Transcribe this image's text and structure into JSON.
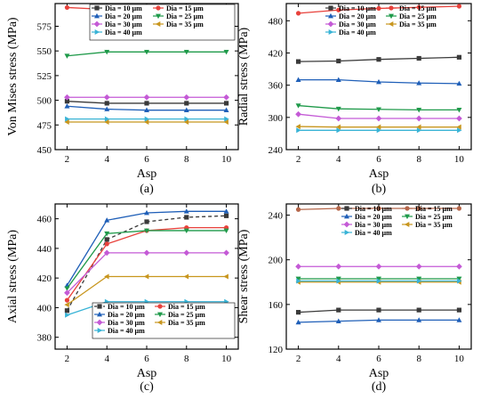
{
  "colors": {
    "Dia = 10 µm": "#3a3a3a",
    "Dia = 15 µm": "#e8413b",
    "Dia = 20 µm": "#1f5fb8",
    "Dia = 25 µm": "#1f9a4a",
    "Dia = 30 µm": "#c45ad6",
    "Dia = 35 µm": "#c8961e",
    "Dia = 40 µm": "#38b3d6",
    "Dia = 15 µm (d)": "#b5664a"
  },
  "chart_data": [
    {
      "type": "line",
      "panel_label": "(a)",
      "xlabel": "Asp",
      "ylabel": "Von Mises stress (MPa)",
      "x": [
        2,
        4,
        6,
        8,
        10
      ],
      "xlim": [
        1.4,
        10.6
      ],
      "ylim": [
        450,
        598
      ],
      "yticks": [
        450,
        475,
        500,
        525,
        550,
        575
      ],
      "xticks": [
        2,
        4,
        6,
        8,
        10
      ],
      "legend_placement": "top-right",
      "series": [
        {
          "name": "Dia = 10 µm",
          "marker": "square",
          "values": [
            499,
            497,
            497,
            497,
            497
          ]
        },
        {
          "name": "Dia = 15 µm",
          "marker": "circle",
          "values": [
            594,
            592,
            592,
            592,
            592
          ]
        },
        {
          "name": "Dia = 20 µm",
          "marker": "triangle-up",
          "values": [
            494,
            491,
            490,
            490,
            490
          ]
        },
        {
          "name": "Dia = 25 µm",
          "marker": "triangle-down",
          "values": [
            545,
            549,
            549,
            549,
            549
          ]
        },
        {
          "name": "Dia = 30 µm",
          "marker": "diamond",
          "values": [
            503,
            503,
            503,
            503,
            503
          ]
        },
        {
          "name": "Dia = 35 µm",
          "marker": "triangle-left",
          "values": [
            478,
            478,
            478,
            478,
            478
          ]
        },
        {
          "name": "Dia = 40 µm",
          "marker": "triangle-right",
          "values": [
            481,
            481,
            481,
            481,
            481
          ]
        }
      ]
    },
    {
      "type": "line",
      "panel_label": "(b)",
      "xlabel": "Asp",
      "ylabel": "Radial stress (MPa)",
      "x": [
        2,
        4,
        6,
        8,
        10
      ],
      "xlim": [
        1.4,
        10.6
      ],
      "ylim": [
        240,
        512
      ],
      "yticks": [
        240,
        300,
        360,
        420,
        480
      ],
      "xticks": [
        2,
        4,
        6,
        8,
        10
      ],
      "legend_placement": "top-right",
      "series": [
        {
          "name": "Dia = 10 µm",
          "marker": "square",
          "values": [
            404,
            405,
            408,
            410,
            412
          ]
        },
        {
          "name": "Dia = 15 µm",
          "marker": "circle",
          "values": [
            494,
            500,
            503,
            505,
            507
          ]
        },
        {
          "name": "Dia = 20 µm",
          "marker": "triangle-up",
          "values": [
            370,
            370,
            366,
            364,
            363
          ]
        },
        {
          "name": "Dia = 25 µm",
          "marker": "triangle-down",
          "values": [
            322,
            316,
            315,
            314,
            314
          ]
        },
        {
          "name": "Dia = 30 µm",
          "marker": "diamond",
          "values": [
            306,
            298,
            298,
            298,
            298
          ]
        },
        {
          "name": "Dia = 35 µm",
          "marker": "triangle-left",
          "values": [
            283,
            282,
            282,
            282,
            282
          ]
        },
        {
          "name": "Dia = 40 µm",
          "marker": "triangle-right",
          "values": [
            276,
            276,
            276,
            276,
            276
          ]
        }
      ]
    },
    {
      "type": "line",
      "panel_label": "(c)",
      "xlabel": "Asp",
      "ylabel": "Axial stress (MPa)",
      "x": [
        2,
        4,
        6,
        8,
        10
      ],
      "xlim": [
        1.4,
        10.6
      ],
      "ylim": [
        372,
        470
      ],
      "yticks": [
        380,
        400,
        420,
        440,
        460
      ],
      "xticks": [
        2,
        4,
        6,
        8,
        10
      ],
      "legend_placement": "bottom-right",
      "series": [
        {
          "name": "Dia = 10 µm",
          "marker": "square",
          "dashed": true,
          "values": [
            398,
            446,
            458,
            461,
            462
          ]
        },
        {
          "name": "Dia = 15 µm",
          "marker": "circle",
          "values": [
            405,
            443,
            452,
            454,
            454
          ]
        },
        {
          "name": "Dia = 20 µm",
          "marker": "triangle-up",
          "values": [
            415,
            459,
            464,
            465,
            465
          ]
        },
        {
          "name": "Dia = 25 µm",
          "marker": "triangle-down",
          "values": [
            413,
            450,
            452,
            452,
            452
          ]
        },
        {
          "name": "Dia = 30 µm",
          "marker": "diamond",
          "values": [
            410,
            437,
            437,
            437,
            437
          ]
        },
        {
          "name": "Dia = 35 µm",
          "marker": "triangle-left",
          "values": [
            402,
            421,
            421,
            421,
            421
          ]
        },
        {
          "name": "Dia = 40 µm",
          "marker": "triangle-right",
          "values": [
            395,
            404,
            404,
            404,
            404
          ]
        }
      ]
    },
    {
      "type": "line",
      "panel_label": "(d)",
      "xlabel": "Asp",
      "ylabel": "Shear stress (MPa)",
      "x": [
        2,
        4,
        6,
        8,
        10
      ],
      "xlim": [
        1.4,
        10.6
      ],
      "ylim": [
        120,
        250
      ],
      "yticks": [
        120,
        160,
        200,
        240
      ],
      "xticks": [
        2,
        4,
        6,
        8,
        10
      ],
      "legend_placement": "top-right",
      "series": [
        {
          "name": "Dia = 10 µm",
          "marker": "square",
          "values": [
            153,
            155,
            155,
            155,
            155
          ]
        },
        {
          "name": "Dia = 15 µm",
          "marker": "circle",
          "colorKey": "Dia = 15 µm (d)",
          "values": [
            245,
            246,
            246,
            246,
            246
          ]
        },
        {
          "name": "Dia = 20 µm",
          "marker": "triangle-up",
          "values": [
            144,
            145,
            146,
            146,
            146
          ]
        },
        {
          "name": "Dia = 25 µm",
          "marker": "triangle-down",
          "values": [
            183,
            183,
            183,
            183,
            183
          ]
        },
        {
          "name": "Dia = 30 µm",
          "marker": "diamond",
          "values": [
            194,
            194,
            194,
            194,
            194
          ]
        },
        {
          "name": "Dia = 35 µm",
          "marker": "triangle-left",
          "values": [
            180,
            180,
            180,
            180,
            180
          ]
        },
        {
          "name": "Dia = 40 µm",
          "marker": "triangle-right",
          "values": [
            181,
            181,
            181,
            181,
            181
          ]
        }
      ]
    }
  ]
}
